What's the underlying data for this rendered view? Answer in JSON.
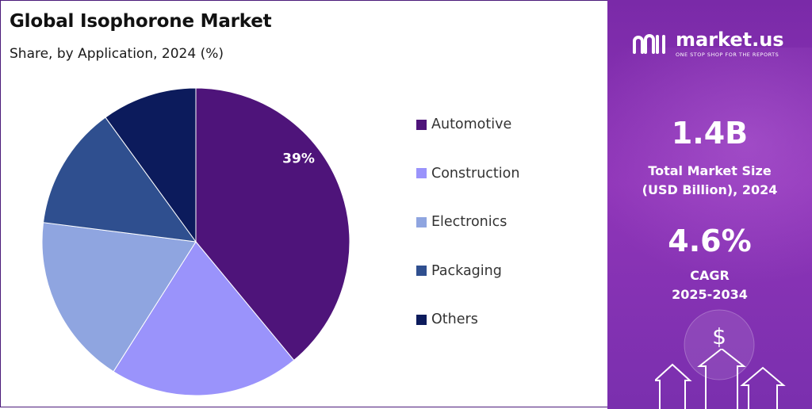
{
  "header": {
    "title": "Global Isophorone Market",
    "subtitle": "Share, by Application, 2024 (%)"
  },
  "chart_data": {
    "type": "pie",
    "title": "Global Isophorone Market",
    "subtitle": "Share, by Application, 2024 (%)",
    "categories": [
      "Automotive",
      "Construction",
      "Electronics",
      "Packaging",
      "Others"
    ],
    "values": [
      39,
      20,
      18,
      13,
      10
    ],
    "colors": [
      "#4e147a",
      "#9a93fb",
      "#8fa5e0",
      "#2f4f8f",
      "#0c1b5c"
    ],
    "data_labels": [
      "39%",
      "",
      "",
      "",
      ""
    ],
    "legend_position": "right"
  },
  "brand": {
    "name": "market.us",
    "tagline": "ONE STOP SHOP FOR THE REPORTS"
  },
  "stats": {
    "market_size_value": "1.4B",
    "market_size_label_1": "Total Market Size",
    "market_size_label_2": "(USD Billion), 2024",
    "cagr_value": "4.6%",
    "cagr_label_1": "CAGR",
    "cagr_label_2": "2025-2034"
  },
  "icons": {
    "dollar": "$"
  }
}
